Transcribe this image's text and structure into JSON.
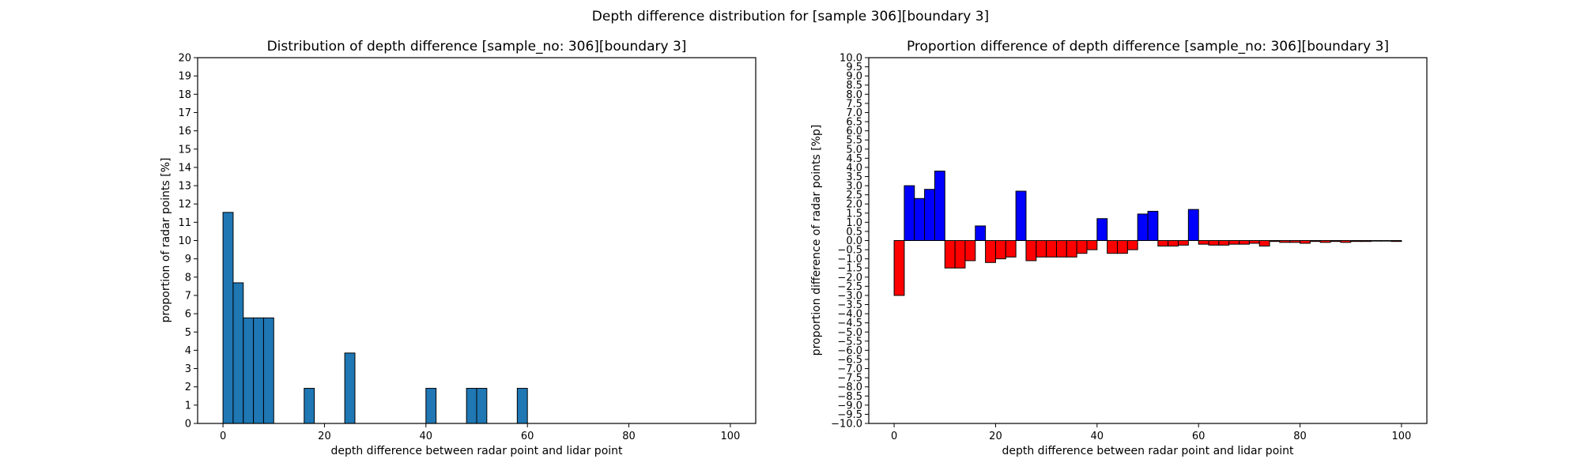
{
  "figure": {
    "suptitle": "Depth difference distribution for [sample 306][boundary 3]"
  },
  "chart_data": [
    {
      "type": "bar",
      "title": "Distribution of depth difference [sample_no: 306][boundary 3]",
      "xlabel": "depth difference between radar point and lidar point",
      "ylabel": "proportion of radar points [%]",
      "xlim": [
        -5,
        105
      ],
      "ylim": [
        0,
        20
      ],
      "xticks": [
        0,
        20,
        40,
        60,
        80,
        100
      ],
      "yticks": [
        0,
        1,
        2,
        3,
        4,
        5,
        6,
        7,
        8,
        9,
        10,
        11,
        12,
        13,
        14,
        15,
        16,
        17,
        18,
        19,
        20
      ],
      "bin_width": 2,
      "bar_color": "#1f77b4",
      "edge_color": "#000000",
      "grid": false,
      "bins": [
        0,
        2,
        4,
        6,
        8,
        16,
        24,
        40,
        48,
        50,
        58
      ],
      "values": [
        11.54,
        7.69,
        5.77,
        5.77,
        5.77,
        1.92,
        3.85,
        1.92,
        1.92,
        1.92,
        1.92
      ]
    },
    {
      "type": "bar",
      "title": "Proportion difference of depth difference [sample_no: 306][boundary 3]",
      "xlabel": "depth difference between radar point and lidar point",
      "ylabel": "proportion difference of radar points [%p]",
      "xlim": [
        -5,
        105
      ],
      "ylim": [
        -10,
        10
      ],
      "xticks": [
        0,
        20,
        40,
        60,
        80,
        100
      ],
      "ytick_step": 0.5,
      "bin_width": 2,
      "positive_color": "#0000ff",
      "negative_color": "#ff0000",
      "edge_color": "#000000",
      "grid": false,
      "bins": [
        0,
        2,
        4,
        6,
        8,
        10,
        12,
        14,
        16,
        18,
        20,
        22,
        24,
        26,
        28,
        30,
        32,
        34,
        36,
        38,
        40,
        42,
        44,
        46,
        48,
        50,
        52,
        54,
        56,
        58,
        60,
        62,
        64,
        66,
        68,
        70,
        72,
        74,
        76,
        78,
        80,
        82,
        84,
        86,
        88,
        90,
        92,
        94,
        96,
        98
      ],
      "values": [
        -3.0,
        3.0,
        2.3,
        2.8,
        3.8,
        -1.5,
        -1.5,
        -1.1,
        0.8,
        -1.2,
        -1.0,
        -0.9,
        2.7,
        -1.1,
        -0.9,
        -0.9,
        -0.9,
        -0.9,
        -0.7,
        -0.5,
        1.2,
        -0.7,
        -0.7,
        -0.5,
        1.45,
        1.6,
        -0.3,
        -0.3,
        -0.25,
        1.7,
        -0.2,
        -0.25,
        -0.25,
        -0.2,
        -0.2,
        -0.15,
        -0.3,
        -0.05,
        -0.1,
        -0.1,
        -0.15,
        -0.05,
        -0.1,
        -0.05,
        -0.1,
        -0.05,
        -0.05,
        -0.03,
        -0.03,
        -0.05
      ]
    }
  ]
}
